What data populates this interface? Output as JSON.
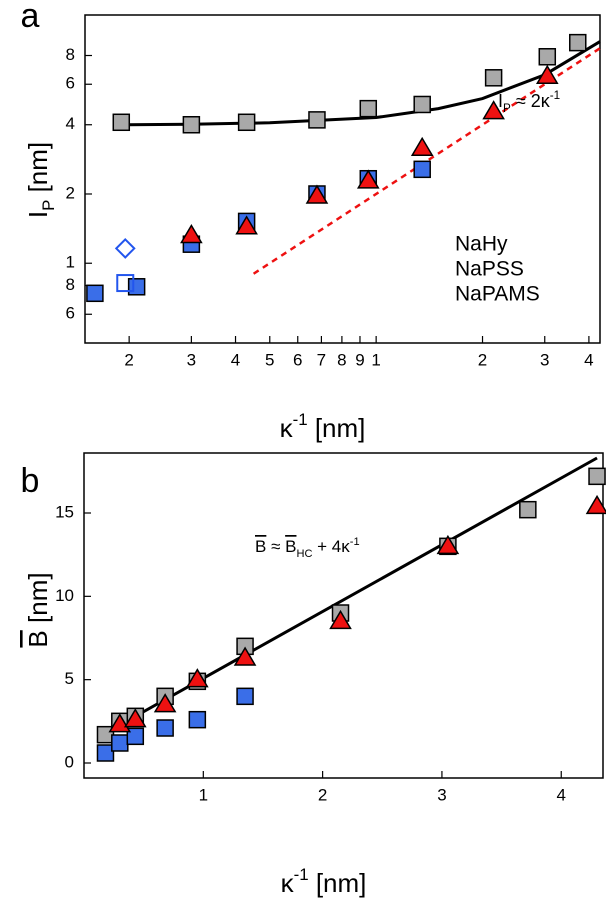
{
  "chart_data": [
    {
      "type": "scatter",
      "label": "a",
      "xscale": "log",
      "yscale": "log",
      "x_label": {
        "parts": [
          "κ",
          "-1",
          " [nm]"
        ],
        "styles": [
          "normal",
          "sup",
          "normal"
        ]
      },
      "y_label": {
        "parts": [
          "I",
          "P",
          " [nm]"
        ],
        "styles": [
          "normal",
          "sub",
          "normal"
        ]
      },
      "xlim": [
        0.15,
        4.3
      ],
      "ylim": [
        0.45,
        12
      ],
      "xticks": [
        {
          "value": 0.2,
          "label": "2"
        },
        {
          "value": 0.3,
          "label": "3"
        },
        {
          "value": 0.4,
          "label": "4"
        },
        {
          "value": 0.5,
          "label": "5"
        },
        {
          "value": 0.6,
          "label": "6"
        },
        {
          "value": 0.7,
          "label": "7"
        },
        {
          "value": 0.8,
          "label": "8"
        },
        {
          "value": 0.9,
          "label": "9"
        },
        1,
        2,
        3,
        4
      ],
      "yticks": [
        {
          "value": 0.6,
          "label": "6"
        },
        {
          "value": 0.8,
          "label": "8"
        },
        1,
        2,
        4,
        6,
        8
      ],
      "grid": false,
      "series": [
        {
          "name": "NaHy",
          "color": "#a9a9a9",
          "text_color": "#000000",
          "marker": "square",
          "x": [
            0.19,
            0.3,
            0.43,
            0.68,
            0.95,
            1.35,
            2.15,
            3.05,
            3.72
          ],
          "values": [
            4.1,
            4.0,
            4.1,
            4.2,
            4.7,
            4.9,
            6.4,
            7.9,
            9.1
          ]
        },
        {
          "name": "NaPSS",
          "color": "#3a6ee8",
          "text_color": "#2255ee",
          "marker": "square",
          "x": [
            0.16,
            0.21,
            0.3,
            0.43,
            0.68,
            0.95,
            1.35
          ],
          "values": [
            0.74,
            0.79,
            1.21,
            1.52,
            2.0,
            2.33,
            2.56
          ]
        },
        {
          "name": "NaPAMS",
          "color": "#ee1111",
          "text_color": "#ee1111",
          "marker": "triangle",
          "x": [
            0.3,
            0.43,
            0.68,
            0.95,
            1.35,
            2.15,
            3.05
          ],
          "values": [
            1.32,
            1.44,
            1.96,
            2.28,
            3.16,
            4.56,
            6.5
          ]
        }
      ],
      "open_points": {
        "color": "#2255ee",
        "markers": [
          "square",
          "diamond"
        ],
        "x": [
          0.195,
          0.195
        ],
        "values": [
          0.82,
          1.16
        ]
      },
      "lines": [
        {
          "color": "#000000",
          "dash": false,
          "x": [
            0.19,
            0.3,
            0.5,
            1,
            1.5,
            2,
            3,
            4.3
          ],
          "values": [
            4.0,
            4.02,
            4.08,
            4.3,
            4.7,
            5.2,
            6.6,
            9.2
          ]
        },
        {
          "color": "#ee1111",
          "dash": true,
          "x": [
            0.45,
            4.3
          ],
          "values": [
            0.9,
            8.6
          ]
        }
      ],
      "annotation": {
        "parts": [
          "I",
          "P",
          " ≈ 2κ",
          "-1"
        ],
        "styles": [
          "normal",
          "sub",
          "normal",
          "sup"
        ],
        "color": "#ee1111"
      },
      "legend_loc": "lower right"
    },
    {
      "type": "scatter",
      "label": "b",
      "xscale": "linear",
      "yscale": "linear",
      "x_label": {
        "parts": [
          "κ",
          "-1",
          " [nm]"
        ],
        "styles": [
          "normal",
          "sup",
          "normal"
        ]
      },
      "y_label": {
        "parts": [
          "B",
          " [nm]"
        ],
        "styles": [
          "over",
          "normal"
        ]
      },
      "xlim": [
        0,
        4.35
      ],
      "ylim": [
        -0.9,
        18.6
      ],
      "xticks": [
        1,
        2,
        3,
        4
      ],
      "yticks": [
        0,
        5,
        10,
        15
      ],
      "grid": false,
      "series": [
        {
          "name": "NaHy",
          "color": "#a9a9a9",
          "marker": "square",
          "x": [
            0.18,
            0.3,
            0.43,
            0.68,
            0.95,
            1.35,
            2.15,
            3.05,
            3.72,
            4.3
          ],
          "values": [
            1.7,
            2.5,
            2.8,
            4.0,
            4.9,
            7.0,
            9.0,
            13.0,
            15.2,
            17.2
          ]
        },
        {
          "name": "NaPSS",
          "color": "#3a6ee8",
          "marker": "square",
          "x": [
            0.18,
            0.3,
            0.43,
            0.68,
            0.95,
            1.35
          ],
          "values": [
            0.6,
            1.2,
            1.6,
            2.1,
            2.6,
            4.0
          ]
        },
        {
          "name": "NaPAMS",
          "color": "#ee1111",
          "marker": "triangle",
          "x": [
            0.3,
            0.43,
            0.68,
            0.95,
            1.35,
            2.15,
            3.05,
            4.3
          ],
          "values": [
            2.3,
            2.6,
            3.5,
            5.0,
            6.3,
            8.5,
            13.0,
            15.4
          ]
        }
      ],
      "lines": [
        {
          "color": "#000000",
          "dash": false,
          "x": [
            0.18,
            4.3
          ],
          "values": [
            1.8,
            18.3
          ]
        }
      ],
      "annotation": {
        "parts": [
          "B",
          " ≈ ",
          "B",
          "HC",
          " + 4κ",
          "-1"
        ],
        "styles": [
          "over",
          "normal",
          "over",
          "sub",
          "normal",
          "sup"
        ],
        "color": "#000000"
      }
    }
  ]
}
